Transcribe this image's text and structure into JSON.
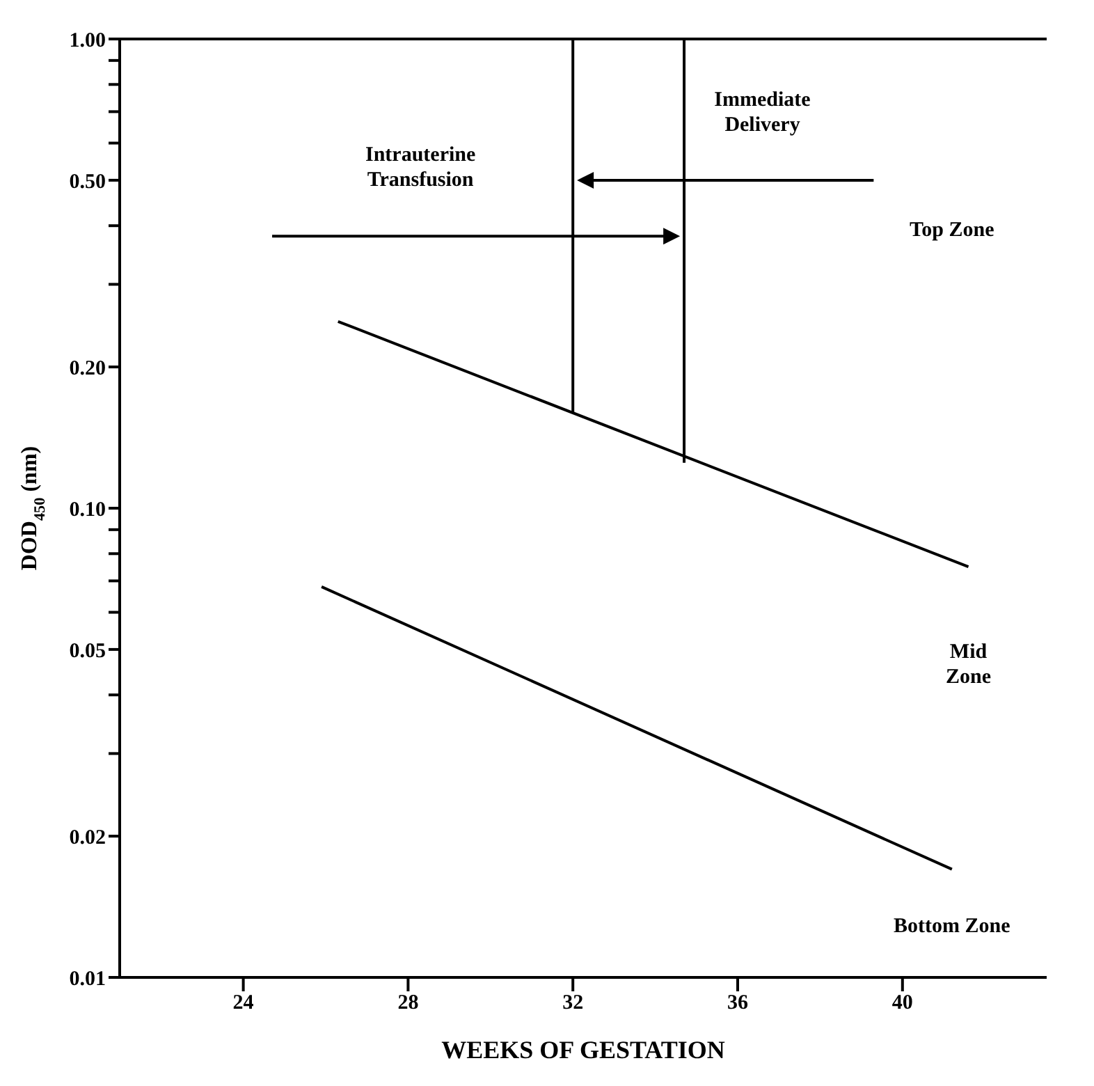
{
  "chart_data": {
    "type": "line",
    "xlabel": "WEEKS OF GESTATION",
    "ylabel": "DOD$_{450}$ (nm)",
    "log": "y",
    "marker": "none",
    "line_style": "solid",
    "xlim": [
      21,
      43.5
    ],
    "xticks": [
      24,
      28,
      32,
      36,
      40
    ],
    "ylim": [
      0.01,
      1
    ],
    "yticks": [
      {
        "value": 1,
        "label": "1.00"
      },
      {
        "value": 0.9,
        "label": null
      },
      {
        "value": 0.8,
        "label": null
      },
      {
        "value": 0.7,
        "label": null
      },
      {
        "value": 0.6,
        "label": null
      },
      {
        "value": 0.5,
        "label": "0.50"
      },
      {
        "value": 0.4,
        "label": null
      },
      {
        "value": 0.3,
        "label": null
      },
      {
        "value": 0.2,
        "label": "0.20"
      },
      {
        "value": 0.1,
        "label": "0.10"
      },
      {
        "value": 0.09,
        "label": null
      },
      {
        "value": 0.08,
        "label": null
      },
      {
        "value": 0.07,
        "label": null
      },
      {
        "value": 0.06,
        "label": null
      },
      {
        "value": 0.05,
        "label": "0.05"
      },
      {
        "value": 0.04,
        "label": null
      },
      {
        "value": 0.03,
        "label": null
      },
      {
        "value": 0.02,
        "label": "0.02"
      },
      {
        "value": 0.01,
        "label": "0.01"
      }
    ],
    "series": [
      {
        "color": "#000000",
        "x": [
          26.3,
          41.6
        ],
        "values": [
          0.25,
          0.075
        ]
      },
      {
        "color": "#000000",
        "x": [
          25.9,
          41.2
        ],
        "values": [
          0.068,
          0.017
        ]
      },
      {
        "color": "#000000",
        "x": [
          32,
          32
        ],
        "values": [
          1,
          0.16
        ]
      },
      {
        "color": "#000000",
        "x": [
          34.7,
          34.7
        ],
        "values": [
          1,
          0.125
        ]
      }
    ],
    "annotations": [
      "Intrauterine\nTransfusion",
      "Immediate\nDelivery",
      "Top Zone",
      "Mid\nZone",
      "Bottom Zone"
    ]
  }
}
